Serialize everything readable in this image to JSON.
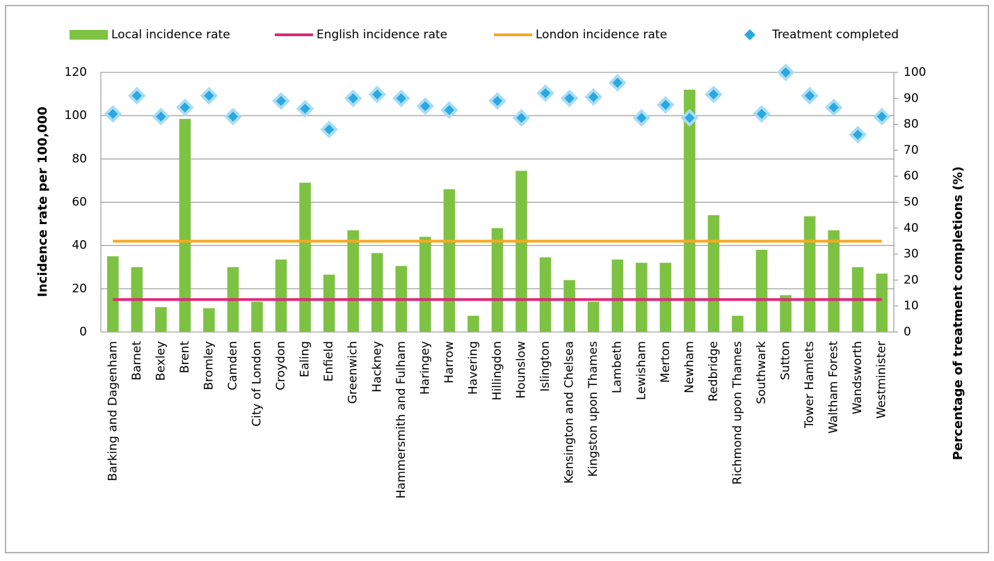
{
  "chart_data": {
    "type": "combo",
    "y_label": "Incidence rate per 100,000",
    "y2_label": "Percentage of treatment completions (%)",
    "categories": [
      "Barking and Dagenham",
      "Barnet",
      "Bexley",
      "Brent",
      "Bromley",
      "Camden",
      "City of London",
      "Croydon",
      "Ealing",
      "Enfield",
      "Greenwich",
      "Hackney",
      "Hammersmith and Fulham",
      "Haringey",
      "Harrow",
      "Havering",
      "Hillingdon",
      "Hounslow",
      "Islington",
      "Kensington and Chelsea",
      "Kingston upon Thames",
      "Lambeth",
      "Lewisham",
      "Merton",
      "Newham",
      "Redbridge",
      "Richmond upon Thames",
      "Southwark",
      "Sutton",
      "Tower Hamlets",
      "Waltham Forest",
      "Wandsworth",
      "Westminister"
    ],
    "ylim": [
      0,
      120
    ],
    "yticks": [
      0,
      20,
      40,
      60,
      80,
      100,
      120
    ],
    "y2lim": [
      0,
      100
    ],
    "y2ticks": [
      0,
      10,
      20,
      30,
      40,
      50,
      60,
      70,
      80,
      90,
      100
    ],
    "grid": true,
    "series": [
      {
        "name": "Local incidence rate",
        "type": "bar",
        "color": "#7dc242",
        "values": [
          35,
          30,
          11.5,
          98.5,
          11,
          30,
          14,
          33.5,
          69,
          26.5,
          47,
          36.5,
          30.5,
          44,
          66,
          7.5,
          48,
          74.5,
          34.5,
          24,
          14,
          33.5,
          32,
          32,
          112,
          54,
          7.5,
          38,
          17,
          53.5,
          47,
          30,
          27
        ]
      },
      {
        "name": "English incidence rate",
        "type": "hline",
        "color": "#e0287a",
        "value": 15
      },
      {
        "name": "London incidence rate",
        "type": "hline",
        "color": "#f7a823",
        "value": 42
      },
      {
        "name": "Treatment completed",
        "type": "scatter",
        "axis": "y2",
        "color": "#29a9e0",
        "values": [
          84,
          91,
          83,
          86.5,
          91,
          83,
          null,
          89,
          86,
          78,
          90,
          91.5,
          90,
          87,
          85.5,
          null,
          89,
          82.5,
          92,
          90,
          90.5,
          96,
          82.5,
          87.5,
          82.5,
          91.5,
          null,
          84,
          100,
          91,
          86.5,
          76,
          83
        ]
      }
    ]
  }
}
